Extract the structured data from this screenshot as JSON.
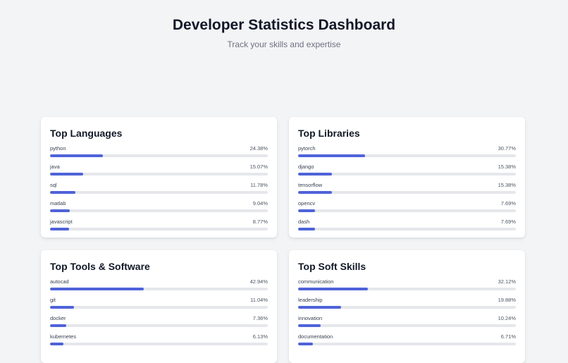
{
  "header": {
    "title": "Developer Statistics Dashboard",
    "subtitle": "Track your skills and expertise"
  },
  "accent_color": "#4f63d8",
  "cards": [
    {
      "title": "Top Languages",
      "items": [
        {
          "label": "python",
          "value": "24.38%",
          "percent": 24.38
        },
        {
          "label": "java",
          "value": "15.07%",
          "percent": 15.07
        },
        {
          "label": "sql",
          "value": "11.78%",
          "percent": 11.78
        },
        {
          "label": "matlab",
          "value": "9.04%",
          "percent": 9.04
        },
        {
          "label": "javascript",
          "value": "8.77%",
          "percent": 8.77
        }
      ]
    },
    {
      "title": "Top Libraries",
      "items": [
        {
          "label": "pytorch",
          "value": "30.77%",
          "percent": 30.77
        },
        {
          "label": "django",
          "value": "15.38%",
          "percent": 15.38
        },
        {
          "label": "tensorflow",
          "value": "15.38%",
          "percent": 15.38
        },
        {
          "label": "opencv",
          "value": "7.69%",
          "percent": 7.69
        },
        {
          "label": "dash",
          "value": "7.69%",
          "percent": 7.69
        }
      ]
    },
    {
      "title": "Top Tools & Software",
      "items": [
        {
          "label": "autocad",
          "value": "42.94%",
          "percent": 42.94
        },
        {
          "label": "git",
          "value": "11.04%",
          "percent": 11.04
        },
        {
          "label": "docker",
          "value": "7.36%",
          "percent": 7.36
        },
        {
          "label": "kubernetes",
          "value": "6.13%",
          "percent": 6.13
        }
      ]
    },
    {
      "title": "Top Soft Skills",
      "items": [
        {
          "label": "communication",
          "value": "32.12%",
          "percent": 32.12
        },
        {
          "label": "leadership",
          "value": "19.88%",
          "percent": 19.88
        },
        {
          "label": "innovation",
          "value": "10.24%",
          "percent": 10.24
        },
        {
          "label": "documentation",
          "value": "6.71%",
          "percent": 6.71
        }
      ]
    }
  ]
}
